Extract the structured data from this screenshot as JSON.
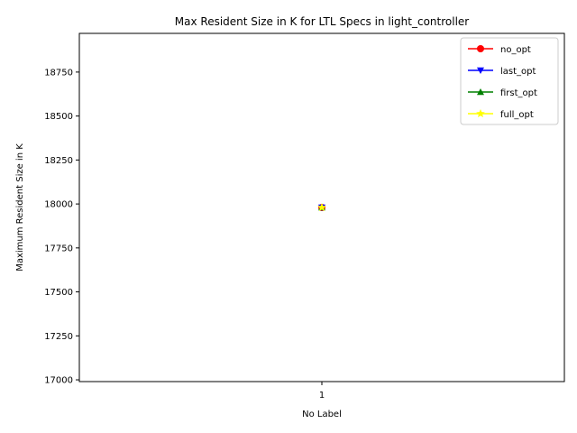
{
  "chart_data": {
    "type": "line",
    "title": "Max Resident Size in K for LTL Specs in light_controller",
    "xlabel": "No Label",
    "ylabel": "Maximum Resident Size in K",
    "categories": [
      "1"
    ],
    "ylim": [
      16990,
      18970
    ],
    "yticks": [
      17000,
      17250,
      17500,
      17750,
      18000,
      18250,
      18500,
      18750
    ],
    "grid": false,
    "legend_position": "top-right",
    "series": [
      {
        "name": "no_opt",
        "color": "#ff0000",
        "marker": "circle",
        "values": [
          17980
        ]
      },
      {
        "name": "last_opt",
        "color": "#0000ff",
        "marker": "triangle-down",
        "values": [
          17980
        ]
      },
      {
        "name": "first_opt",
        "color": "#008000",
        "marker": "triangle-up",
        "values": [
          17980
        ]
      },
      {
        "name": "full_opt",
        "color": "#ffff00",
        "marker": "star",
        "values": [
          17980
        ]
      }
    ]
  }
}
